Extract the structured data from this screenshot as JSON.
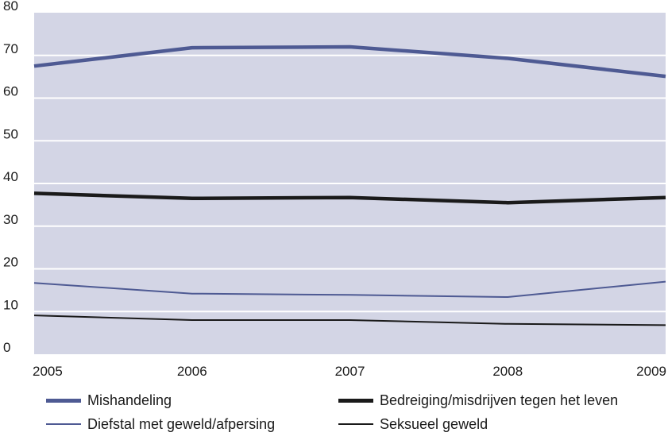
{
  "chart_data": {
    "type": "line",
    "x": [
      "2005",
      "2006",
      "2007",
      "2008",
      "2009"
    ],
    "ylim": [
      0,
      80
    ],
    "yticks": [
      "0",
      "10",
      "20",
      "30",
      "40",
      "50",
      "60",
      "70",
      "80"
    ],
    "grid": true,
    "legend_position": "bottom",
    "series": [
      {
        "name": "Mishandeling",
        "values": [
          67.5,
          71.8,
          72.0,
          69.3,
          65.1
        ],
        "color": "#4e5a93",
        "style": "thick"
      },
      {
        "name": "Bedreiging/misdrijven tegen het leven",
        "values": [
          37.7,
          36.5,
          36.7,
          35.5,
          36.7
        ],
        "color": "#1a1a1a",
        "style": "thick"
      },
      {
        "name": "Diefstal met geweld/afpersing",
        "values": [
          16.7,
          14.2,
          13.9,
          13.4,
          17.0
        ],
        "color": "#4e5a93",
        "style": "thin"
      },
      {
        "name": "Seksueel geweld",
        "values": [
          9.1,
          8.0,
          8.0,
          7.1,
          6.8
        ],
        "color": "#1a1a1a",
        "style": "thin"
      }
    ],
    "plot_background": "#d3d5e5",
    "grid_color": "#ffffff"
  }
}
